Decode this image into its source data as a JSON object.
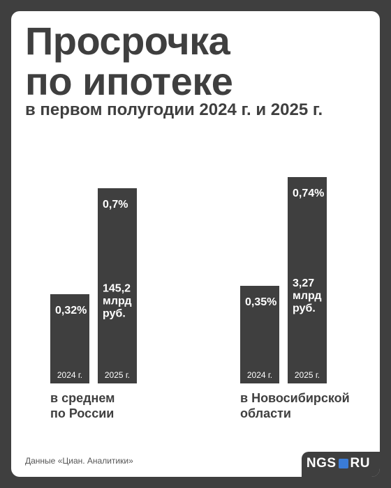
{
  "header": {
    "title_line1": "Просрочка",
    "title_line2": "по ипотеке",
    "subtitle": "в первом полугодии 2024 г. и 2025 г."
  },
  "chart_data": {
    "type": "bar",
    "categories": [
      "в среднем по России",
      "в Новосибирской области"
    ],
    "series": [
      {
        "name": "2024 г.",
        "values": [
          0.32,
          0.35
        ],
        "labels": [
          [
            "0,32%"
          ],
          [
            "0,35%"
          ]
        ]
      },
      {
        "name": "2025 г.",
        "values": [
          0.7,
          0.74
        ],
        "labels": [
          [
            "0,7%",
            "145,2",
            "млрд",
            "руб."
          ],
          [
            "0,74%",
            "3,27",
            "млрд",
            "руб."
          ]
        ]
      }
    ],
    "group_labels": [
      [
        "в среднем",
        "по России"
      ],
      [
        "в Новосибирской",
        "области"
      ]
    ],
    "unit": "%",
    "grid": false
  },
  "footer": {
    "source": "Данные «Циан. Аналитики»",
    "logo_left": "NGS",
    "logo_right": "RU",
    "logo_dot_color": "#3a7bd5"
  }
}
